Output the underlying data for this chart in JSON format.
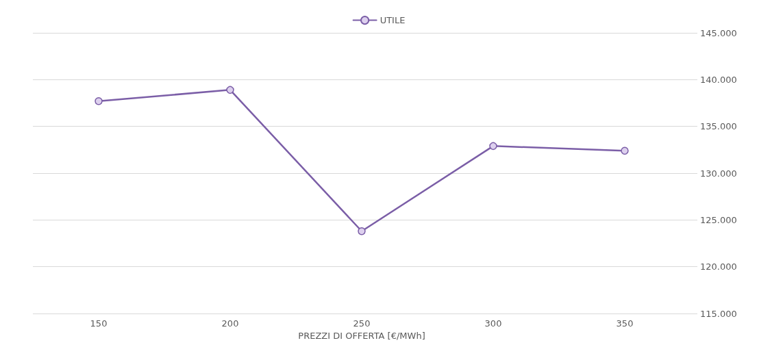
{
  "chart_data": {
    "type": "line",
    "xlabel": "PREZZI DI OFFERTA [€/MWh]",
    "categories": [
      "150",
      "200",
      "250",
      "300",
      "350"
    ],
    "series": [
      {
        "name": "UTILE",
        "color": "#7b5ea7",
        "values": [
          137700,
          138900,
          123800,
          132900,
          132400
        ]
      }
    ],
    "ylim": [
      115000,
      145000
    ],
    "yticks": [
      {
        "value": 115000,
        "label": "115.000"
      },
      {
        "value": 120000,
        "label": "120.000"
      },
      {
        "value": 125000,
        "label": "125.000"
      },
      {
        "value": 130000,
        "label": "130.000"
      },
      {
        "value": 135000,
        "label": "135.000"
      },
      {
        "value": 140000,
        "label": "140.000"
      },
      {
        "value": 145000,
        "label": "145.000"
      }
    ],
    "grid": "y",
    "legend": "top",
    "marker": "circle"
  }
}
